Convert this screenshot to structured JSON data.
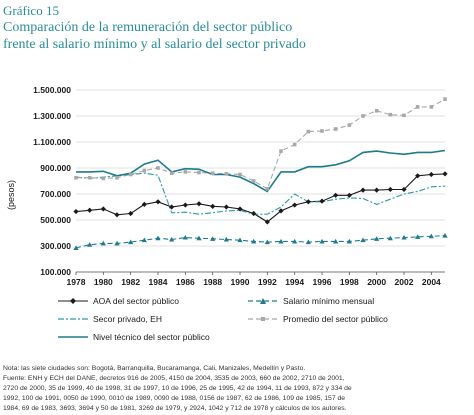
{
  "header": {
    "label": "Gráfico 15",
    "title_line1": "Comparación de la remuneración del sector público",
    "title_line2": "frente al salario mínimo y al salario del sector privado"
  },
  "notes": {
    "line1": "Nota: las siete ciudades son: Bogotá, Barranquilla, Bucaramanga, Cali, Manizales, Medellín y Pasto.",
    "line2": "Fuente: ENH y ECH del DANE, decretos 916 de 2005, 4150 de 2004, 3535 de 2003, 660 de 2002, 2710 de 2001,",
    "line3": "2720 de 2000, 35 de 1999, 40 de 1998, 31 de 1997, 10 de 1996, 25 de 1995, 42 de 1994, 11 de 1993, 872  y 334 de",
    "line4": "1992, 100 de 1991, 0050 de 1990, 0010 de 1989, 0090 de 1988, 0156 de 1987, 62 de 1986, 109 de 1985, 157 de",
    "line5": "1984, 69 de 1983, 3693, 3694 y 50 de 1981, 3269 de 1979, y 2924, 1042 y 712 de 1978 y cálculos de los autores."
  },
  "chart_data": {
    "type": "line",
    "ylabel": "(pesos)",
    "xlabel": "",
    "ylim": [
      100000,
      1500000
    ],
    "xlim": [
      1978,
      2005
    ],
    "x_ticks": [
      1978,
      1980,
      1982,
      1984,
      1986,
      1988,
      1990,
      1992,
      1994,
      1996,
      1998,
      2000,
      2002,
      2004
    ],
    "y_ticks": [
      100000,
      300000,
      500000,
      700000,
      900000,
      1100000,
      1300000,
      1500000
    ],
    "y_tick_labels": [
      "100.000",
      "300.000",
      "500.000",
      "700.000",
      "900.000",
      "1.100.000",
      "1.300.000",
      "1.500.000"
    ],
    "x": [
      1978,
      1979,
      1980,
      1981,
      1982,
      1983,
      1984,
      1985,
      1986,
      1987,
      1988,
      1989,
      1990,
      1991,
      1992,
      1993,
      1994,
      1995,
      1996,
      1997,
      1998,
      1999,
      2000,
      2001,
      2002,
      2003,
      2004,
      2005
    ],
    "series": [
      {
        "name": "AOA del sector público",
        "color": "#1a1a1a",
        "style": "solid-diamond",
        "values": [
          565000,
          575000,
          585000,
          540000,
          550000,
          620000,
          640000,
          600000,
          615000,
          625000,
          605000,
          600000,
          585000,
          550000,
          485000,
          570000,
          615000,
          640000,
          645000,
          690000,
          690000,
          730000,
          730000,
          735000,
          735000,
          840000,
          850000,
          855000
        ]
      },
      {
        "name": "Salario mínimo mensual",
        "color": "#1e7a8c",
        "style": "dashed-triangle",
        "values": [
          285000,
          310000,
          320000,
          320000,
          330000,
          345000,
          360000,
          350000,
          365000,
          360000,
          355000,
          350000,
          345000,
          335000,
          330000,
          335000,
          335000,
          330000,
          335000,
          335000,
          335000,
          345000,
          355000,
          360000,
          365000,
          370000,
          375000,
          380000
        ]
      },
      {
        "name": "Secor privado, EH",
        "color": "#2a9aaa",
        "style": "dashdot",
        "values": [
          830000,
          820000,
          830000,
          840000,
          850000,
          860000,
          845000,
          555000,
          560000,
          545000,
          555000,
          570000,
          575000,
          545000,
          545000,
          600000,
          700000,
          640000,
          640000,
          660000,
          670000,
          665000,
          620000,
          660000,
          700000,
          720000,
          755000,
          760000
        ]
      },
      {
        "name": "Promedio del sector público",
        "color": "#a8a8a8",
        "style": "dashed-square",
        "values": [
          825000,
          825000,
          820000,
          825000,
          850000,
          880000,
          900000,
          860000,
          870000,
          865000,
          860000,
          855000,
          850000,
          800000,
          740000,
          1030000,
          1080000,
          1180000,
          1185000,
          1200000,
          1230000,
          1300000,
          1340000,
          1310000,
          1305000,
          1370000,
          1370000,
          1430000
        ]
      },
      {
        "name": "Nivel técnico del sector público",
        "color": "#1e7a8c",
        "style": "solid",
        "values": [
          870000,
          870000,
          875000,
          840000,
          860000,
          930000,
          960000,
          870000,
          895000,
          890000,
          850000,
          850000,
          830000,
          780000,
          720000,
          870000,
          870000,
          910000,
          910000,
          925000,
          955000,
          1020000,
          1030000,
          1015000,
          1005000,
          1020000,
          1020000,
          1035000
        ]
      }
    ],
    "grid": true,
    "legend_position": "bottom"
  }
}
